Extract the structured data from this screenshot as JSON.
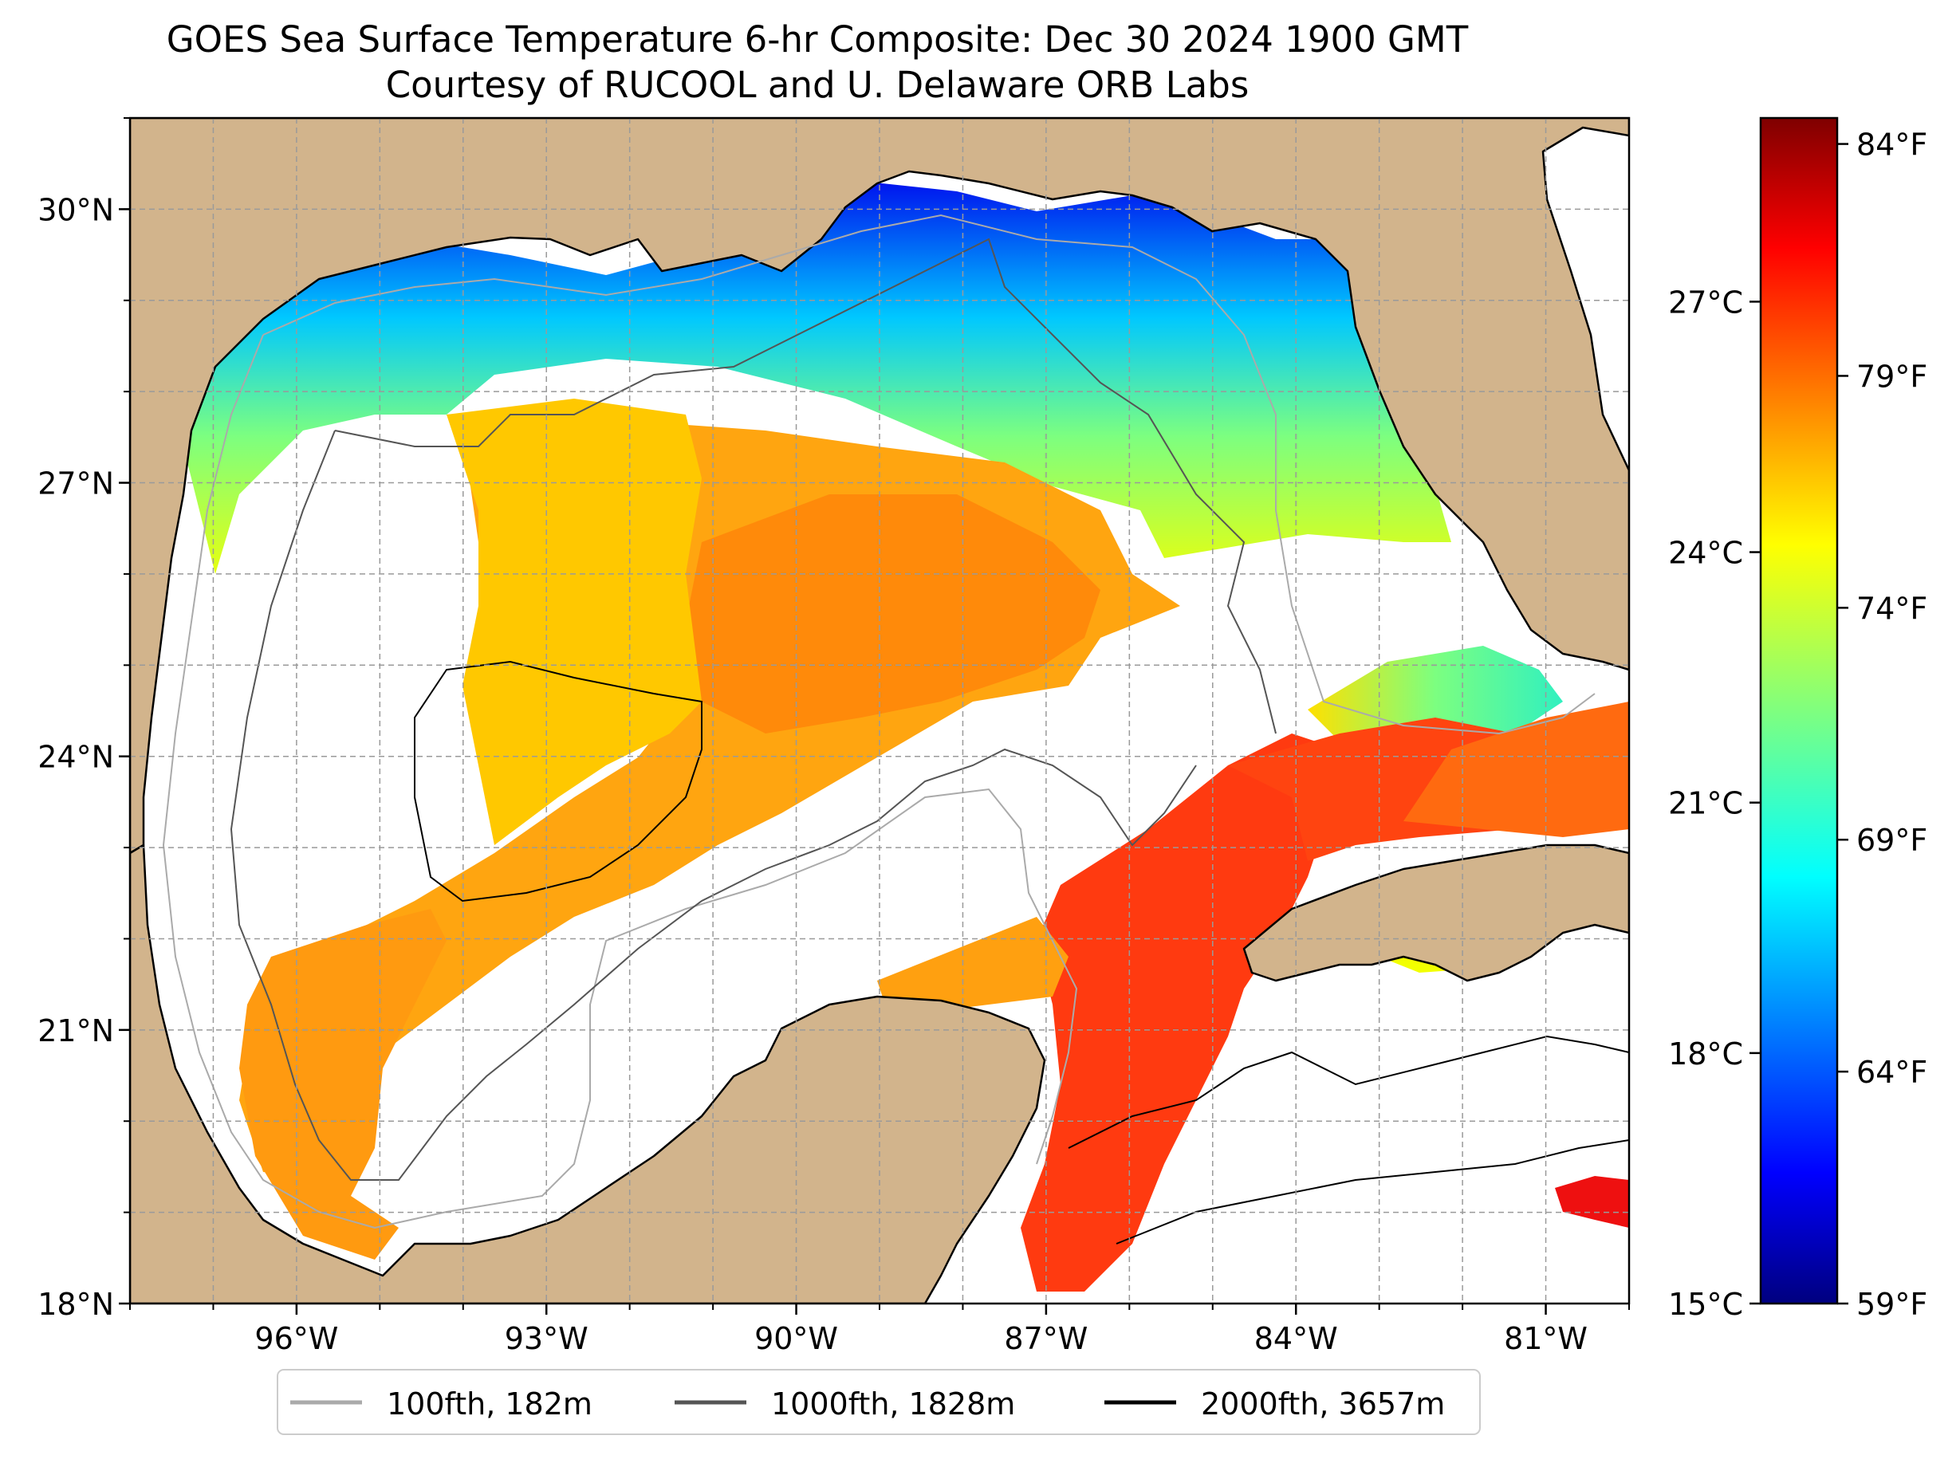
{
  "title": "GOES Sea Surface Temperature 6-hr Composite: Dec 30 2024 1900 GMT",
  "subtitle": "Courtesy of RUCOOL and U. Delaware ORB Labs",
  "map": {
    "region": "Gulf of Mexico",
    "lon_range": [
      -98.0,
      -80.0
    ],
    "lat_range": [
      18.0,
      31.0
    ],
    "lon_ticks": [
      {
        "label": "96°W",
        "value": -96
      },
      {
        "label": "93°W",
        "value": -93
      },
      {
        "label": "90°W",
        "value": -90
      },
      {
        "label": "87°W",
        "value": -87
      },
      {
        "label": "84°W",
        "value": -84
      },
      {
        "label": "81°W",
        "value": -81
      }
    ],
    "lat_ticks": [
      {
        "label": "18°N",
        "value": 18
      },
      {
        "label": "21°N",
        "value": 21
      },
      {
        "label": "24°N",
        "value": 24
      },
      {
        "label": "27°N",
        "value": 27
      },
      {
        "label": "30°N",
        "value": 30
      }
    ],
    "grid": true,
    "land_color": "#D2B48C",
    "no_data_color": "#FFFFFF"
  },
  "colorbar": {
    "colormap": "jet",
    "min_c": 15,
    "max_c": 29.2,
    "celsius_ticks": [
      {
        "label": "15°C",
        "value": 15
      },
      {
        "label": "18°C",
        "value": 18
      },
      {
        "label": "21°C",
        "value": 21
      },
      {
        "label": "24°C",
        "value": 24
      },
      {
        "label": "27°C",
        "value": 27
      }
    ],
    "fahrenheit_ticks": [
      {
        "label": "59°F",
        "value": 59
      },
      {
        "label": "64°F",
        "value": 64
      },
      {
        "label": "69°F",
        "value": 69
      },
      {
        "label": "74°F",
        "value": 74
      },
      {
        "label": "79°F",
        "value": 79
      },
      {
        "label": "84°F",
        "value": 84
      }
    ]
  },
  "legend": {
    "placement": "bottom-center",
    "items": [
      {
        "label": "100fth, 182m",
        "color": "#AAAAAA"
      },
      {
        "label": "1000fth, 1828m",
        "color": "#555555"
      },
      {
        "label": "2000fth, 3657m",
        "color": "#000000"
      }
    ]
  }
}
